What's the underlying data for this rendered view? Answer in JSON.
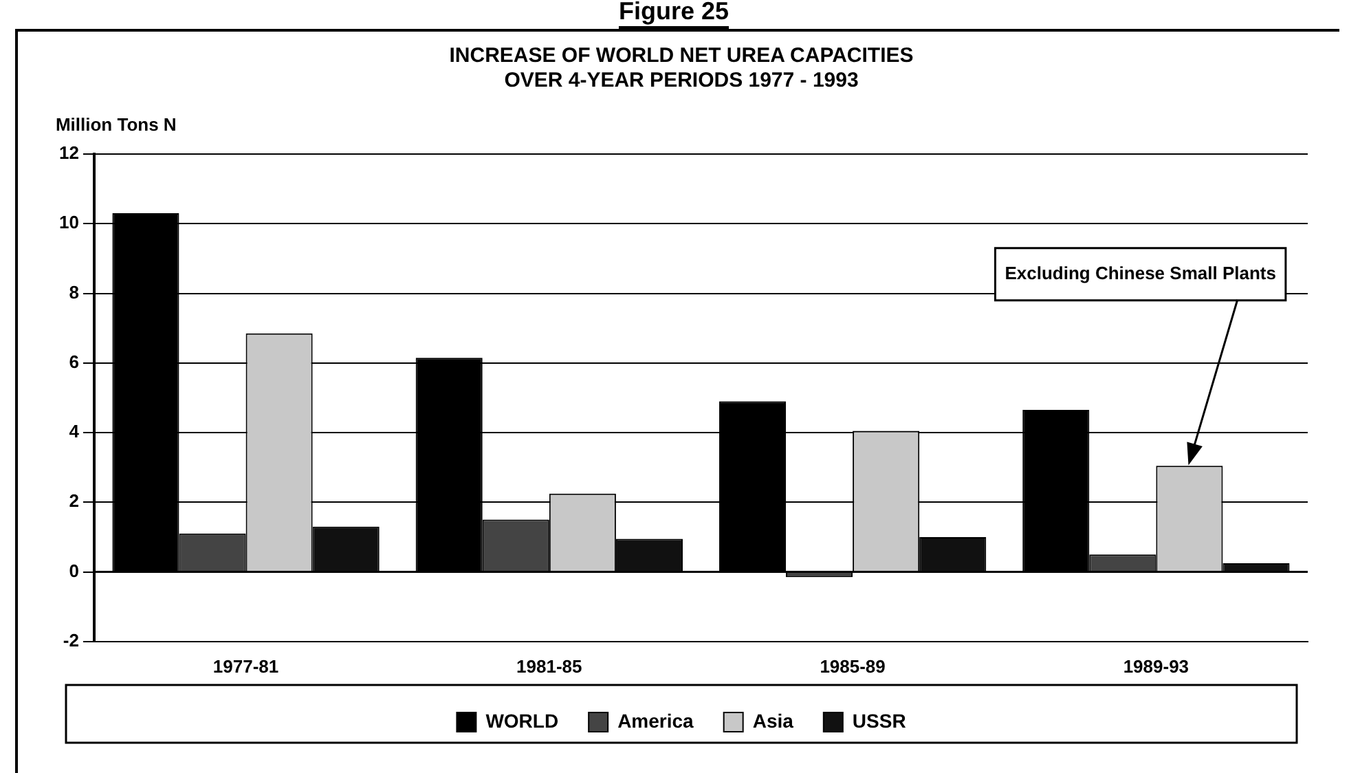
{
  "chart_data": {
    "type": "bar",
    "title": "INCREASE OF WORLD NET UREA CAPACITIES\nOVER 4-YEAR PERIODS 1977 - 1993",
    "ylabel": "Million Tons N",
    "categories": [
      "1977-81",
      "1981-85",
      "1985-89",
      "1989-93"
    ],
    "series": [
      {
        "name": "WORLD",
        "color": "#000000",
        "values": [
          10.3,
          6.15,
          4.9,
          4.65
        ]
      },
      {
        "name": "America",
        "color": "#444444",
        "values": [
          1.1,
          1.5,
          -0.15,
          0.5
        ]
      },
      {
        "name": "Asia",
        "color": "#c8c8c8",
        "values": [
          6.85,
          2.25,
          4.05,
          3.05
        ]
      },
      {
        "name": "USSR",
        "color": "#111111",
        "values": [
          1.3,
          0.95,
          1.0,
          0.25
        ]
      }
    ],
    "ylim": [
      -2,
      12
    ],
    "yticks": [
      -2,
      0,
      2,
      4,
      6,
      8,
      10,
      12
    ],
    "grid": "y",
    "legend": "bottom",
    "annotations": [
      "Figure 25",
      "Excluding Chinese Small Plants"
    ]
  }
}
